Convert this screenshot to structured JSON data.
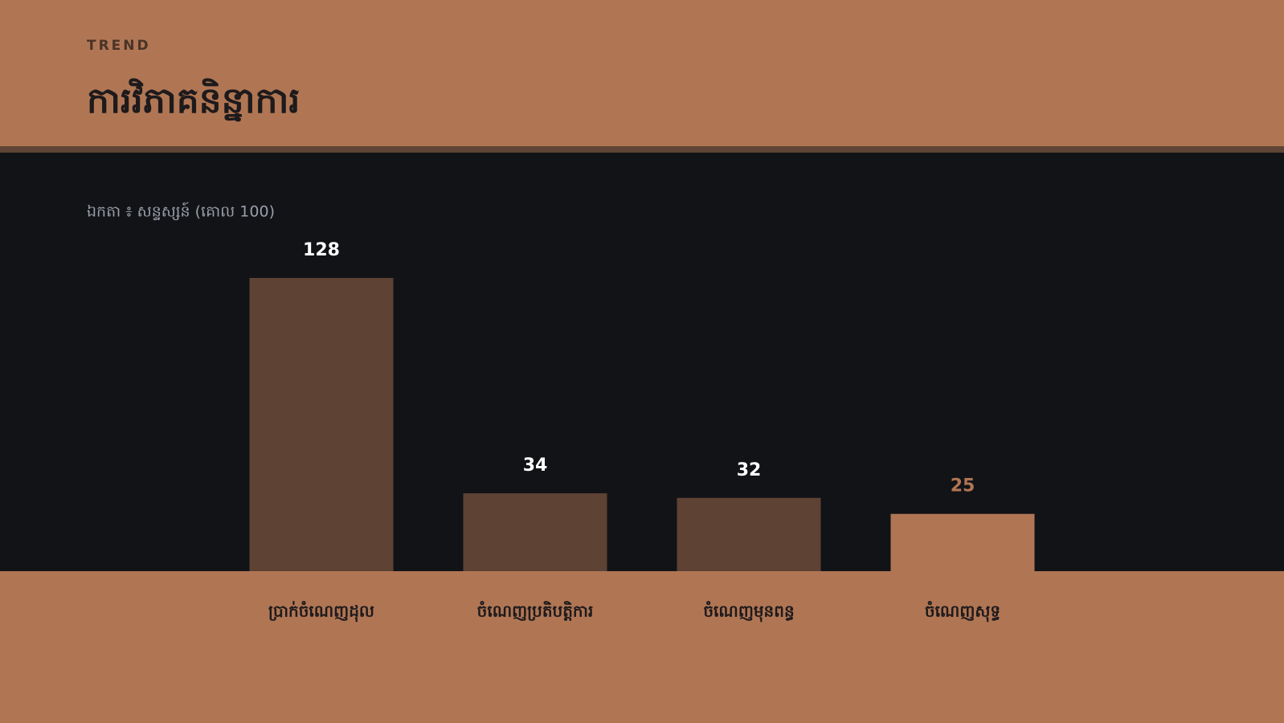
{
  "chart_data": {
    "type": "bar",
    "kicker": "TREND",
    "title": "ការវិភាគនិន្នាការ",
    "subtitle": "ឯកតា ៖ សន្ទស្សន៍ (គោល 100)",
    "categories": [
      "ប្រាក់ចំណេញដុល",
      "ចំណេញប្រតិបត្តិការ",
      "ចំណេញមុនពន្ធ",
      "ចំណេញសុទ្ធ"
    ],
    "values": [
      128,
      34,
      32,
      25
    ],
    "colors": [
      "#5E4234",
      "#5E4234",
      "#5E4234",
      "#B07654"
    ]
  }
}
